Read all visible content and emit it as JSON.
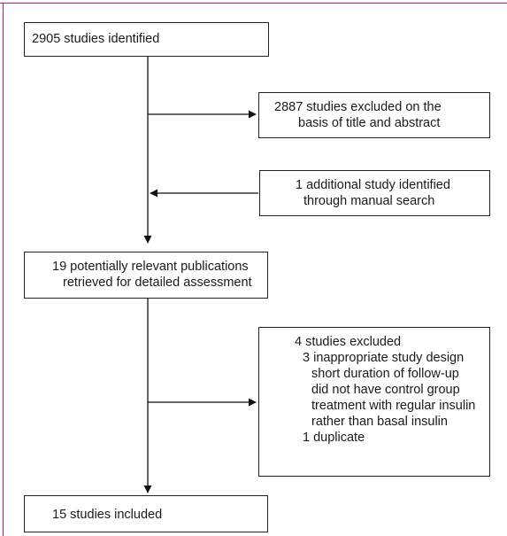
{
  "boxes": {
    "identified": {
      "lines": [
        "2905 studies identified"
      ]
    },
    "excluded_title": {
      "lines": [
        "2887 studies excluded on the",
        "basis of title and abstract"
      ]
    },
    "additional": {
      "lines": [
        "1 additional study identified",
        "through manual search"
      ]
    },
    "relevant": {
      "lines": [
        "19 potentially relevant publications",
        "retrieved for detailed assessment"
      ]
    },
    "excluded_detail": {
      "lines": [
        "4 studies excluded",
        "3 inappropriate study design",
        "short duration of follow-up",
        "did not have control group",
        "treatment with regular insulin",
        "rather than basal insulin",
        "1 duplicate"
      ]
    },
    "included": {
      "lines": [
        "15 studies included"
      ]
    }
  }
}
